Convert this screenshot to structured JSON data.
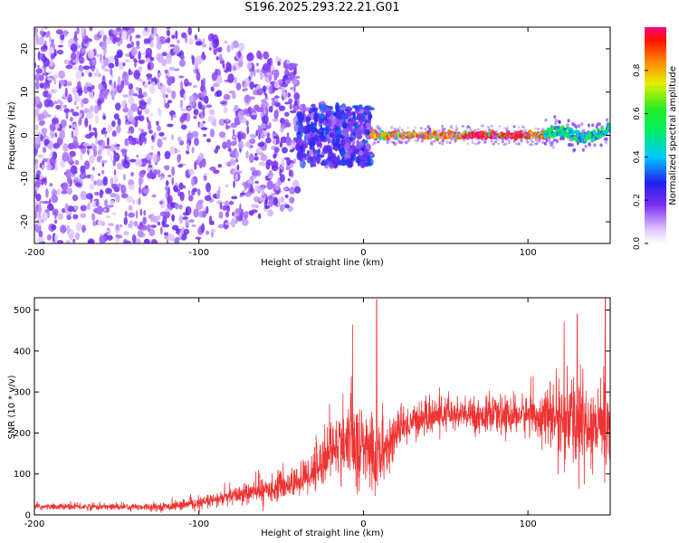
{
  "title": "S196.2025.293.22.21.G01",
  "chart_data": [
    {
      "type": "heatmap",
      "xlabel": "Height of straight line (km)",
      "ylabel": "Frequency (Hz)",
      "xlim": [
        -200,
        150
      ],
      "ylim": [
        -25,
        25
      ],
      "xticks": [
        -200,
        -100,
        0,
        100
      ],
      "yticks": [
        -20,
        -10,
        0,
        10,
        20
      ],
      "description_values": {
        "noise_region_x": [
          -200,
          -30
        ],
        "transition_region_x": [
          -40,
          5
        ],
        "carrier_line_x": [
          5,
          110
        ],
        "carrier_frequency_hz": 0,
        "wobble_region_x": [
          110,
          150
        ]
      },
      "colorbar": {
        "label": "Normalized spectral amplitude",
        "range": [
          0,
          1
        ],
        "ticks": [
          0.0,
          0.2,
          0.4,
          0.6,
          0.8
        ],
        "tick_labels": [
          "0.0",
          "0.2",
          "0.4",
          "0.6",
          "0.8"
        ]
      }
    },
    {
      "type": "line",
      "xlabel": "Height of straight line (km)",
      "ylabel": "SNR (10 * v/v)",
      "xlim": [
        -200,
        150
      ],
      "ylim": [
        0,
        530
      ],
      "xticks": [
        -200,
        -100,
        0,
        100
      ],
      "yticks": [
        0,
        100,
        200,
        300,
        400,
        500
      ],
      "color": "#ee3333",
      "series_profile": {
        "x": [
          -200,
          -120,
          -100,
          -80,
          -60,
          -40,
          -30,
          -20,
          -10,
          0,
          10,
          20,
          30,
          50,
          80,
          100,
          110,
          120,
          130,
          140,
          150
        ],
        "mean": [
          20,
          20,
          28,
          45,
          60,
          80,
          110,
          160,
          180,
          160,
          140,
          200,
          230,
          245,
          240,
          245,
          240,
          235,
          225,
          220,
          215
        ],
        "spread": [
          6,
          8,
          12,
          18,
          25,
          30,
          50,
          60,
          80,
          90,
          80,
          40,
          35,
          35,
          35,
          40,
          50,
          80,
          100,
          100,
          90
        ],
        "peaks": [
          {
            "x": 8,
            "y": 525
          },
          {
            "x": 130,
            "y": 490
          },
          {
            "x": 147,
            "y": 530
          }
        ]
      }
    }
  ]
}
